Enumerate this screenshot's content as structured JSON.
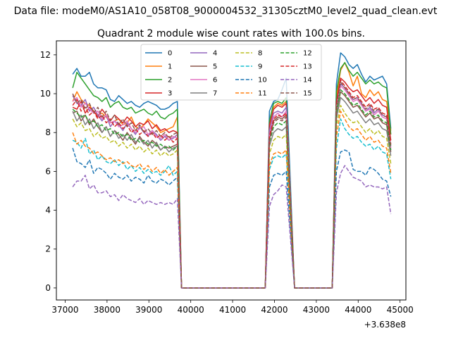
{
  "figure": {
    "suptitle": "Data file: modeM0/AS1A10_058T08_9000004532_31305cztM0_level2_quad_clean.evt",
    "offset_label": "+3.638e8"
  },
  "chart_data": {
    "type": "line",
    "title": "Quadrant 2 module wise count rates with 100.0s bins.",
    "xlabel": "",
    "ylabel": "",
    "x_offset": 363800000,
    "xlim": [
      36790,
      45140
    ],
    "ylim": [
      -0.62,
      12.72
    ],
    "x_ticks": [
      37000,
      38000,
      39000,
      40000,
      41000,
      42000,
      43000,
      44000,
      45000
    ],
    "y_ticks": [
      0,
      2,
      4,
      6,
      8,
      10,
      12
    ],
    "grid": false,
    "legend": {
      "placement": "top-center",
      "columns": 4
    },
    "segments": [
      {
        "x_start": 37180,
        "x_end": 39680,
        "step": 100
      },
      {
        "x_start": 41880,
        "x_end": 42280,
        "step": 100
      },
      {
        "x_start": 43480,
        "x_end": 44780,
        "step": 100
      }
    ],
    "zero_stretches": [
      [
        39780,
        41780
      ],
      [
        42480,
        43380
      ]
    ],
    "bridges": [
      {
        "from": 39680,
        "to": 39780
      },
      {
        "from": 41780,
        "to": 41880
      },
      {
        "from": 42280,
        "to": 42480
      },
      {
        "from": 43380,
        "to": 43480
      }
    ],
    "series": [
      {
        "name": "0",
        "color": "#1f77b4",
        "dash": "solid",
        "seg": [
          [
            11.0,
            11.3,
            10.9,
            10.9,
            11.1,
            10.5,
            10.3,
            10.3,
            10.2,
            9.7,
            9.6,
            9.9,
            9.7,
            9.5,
            9.6,
            9.4,
            9.3,
            9.5,
            9.6,
            9.5,
            9.4,
            9.2,
            9.2,
            9.3,
            9.5,
            9.6
          ],
          [
            9.1,
            9.6,
            9.7,
            10.2,
            10.8
          ],
          [
            10.5,
            12.1,
            11.9,
            11.5,
            11.3,
            11.5,
            11.0,
            10.6,
            10.9,
            10.7,
            10.8,
            10.9,
            10.5,
            8.2
          ]
        ]
      },
      {
        "name": "1",
        "color": "#ff7f0e",
        "dash": "solid",
        "seg": [
          [
            9.6,
            10.1,
            9.7,
            9.5,
            9.4,
            9.1,
            8.9,
            9.0,
            8.8,
            8.5,
            8.6,
            8.7,
            8.4,
            8.5,
            8.8,
            8.3,
            8.2,
            8.4,
            8.7,
            8.5,
            8.3,
            8.0,
            8.1,
            8.2,
            8.3,
            8.8
          ],
          [
            8.2,
            9.3,
            9.5,
            9.4,
            9.6
          ],
          [
            9.8,
            11.2,
            11.6,
            11.1,
            10.4,
            10.9,
            10.0,
            9.8,
            10.2,
            9.9,
            10.1,
            9.7,
            9.6,
            8.1
          ]
        ]
      },
      {
        "name": "2",
        "color": "#2ca02c",
        "dash": "solid",
        "seg": [
          [
            10.3,
            11.1,
            10.8,
            10.5,
            10.2,
            9.9,
            9.8,
            9.6,
            9.8,
            9.3,
            9.5,
            9.6,
            9.3,
            9.2,
            9.3,
            9.0,
            9.1,
            9.2,
            9.0,
            8.9,
            9.1,
            8.8,
            8.7,
            8.9,
            9.0,
            9.2
          ],
          [
            8.6,
            9.5,
            9.6,
            9.5,
            9.8
          ],
          [
            10.1,
            11.3,
            11.6,
            11.2,
            10.9,
            11.1,
            10.8,
            10.5,
            10.7,
            10.5,
            10.6,
            10.4,
            10.3,
            7.9
          ]
        ]
      },
      {
        "name": "3",
        "color": "#d62728",
        "dash": "solid",
        "seg": [
          [
            9.3,
            9.2,
            9.6,
            9.0,
            9.3,
            9.1,
            8.8,
            9.2,
            8.9,
            8.6,
            8.9,
            8.7,
            8.5,
            8.8,
            8.6,
            8.3,
            8.5,
            8.4,
            8.6,
            8.2,
            8.4,
            8.1,
            8.2,
            8.0,
            8.1,
            8.0
          ],
          [
            8.4,
            9.2,
            9.4,
            9.3,
            9.5
          ],
          [
            9.6,
            10.8,
            10.6,
            10.3,
            10.1,
            10.2,
            9.9,
            9.6,
            9.8,
            9.5,
            9.7,
            9.4,
            9.3,
            7.6
          ]
        ]
      },
      {
        "name": "4",
        "color": "#9467bd",
        "dash": "solid",
        "seg": [
          [
            9.9,
            9.5,
            9.4,
            9.7,
            9.1,
            9.3,
            8.9,
            8.6,
            8.9,
            8.3,
            8.6,
            8.4,
            8.1,
            8.5,
            8.2,
            7.9,
            8.3,
            8.0,
            7.8,
            8.1,
            7.9,
            7.6,
            7.8,
            7.6,
            7.7,
            7.9
          ],
          [
            8.1,
            9.0,
            9.1,
            9.0,
            9.3
          ],
          [
            9.3,
            10.5,
            10.3,
            10.0,
            9.7,
            9.8,
            9.5,
            9.1,
            9.3,
            9.0,
            9.2,
            8.9,
            8.8,
            7.3
          ]
        ]
      },
      {
        "name": "5",
        "color": "#8c564b",
        "dash": "solid",
        "seg": [
          [
            9.0,
            9.1,
            8.6,
            8.9,
            8.4,
            8.7,
            8.3,
            8.0,
            8.3,
            7.8,
            8.1,
            7.9,
            7.6,
            8.0,
            7.7,
            7.4,
            7.8,
            7.5,
            7.3,
            7.6,
            7.4,
            7.1,
            7.3,
            7.2,
            7.3,
            7.4
          ],
          [
            7.7,
            8.6,
            8.8,
            8.7,
            8.9
          ],
          [
            9.0,
            10.1,
            9.9,
            9.6,
            9.3,
            9.4,
            9.1,
            8.8,
            9.0,
            8.7,
            8.8,
            8.5,
            8.4,
            7.0
          ]
        ]
      },
      {
        "name": "6",
        "color": "#e377c2",
        "dash": "solid",
        "seg": [
          [
            9.6,
            9.8,
            9.3,
            9.5,
            9.2,
            9.0,
            9.1,
            8.7,
            8.9,
            8.5,
            8.6,
            8.3,
            8.4,
            8.6,
            8.2,
            8.0,
            8.2,
            8.3,
            7.9,
            8.1,
            7.8,
            7.7,
            7.9,
            7.6,
            7.8,
            7.7
          ],
          [
            7.9,
            8.8,
            9.0,
            8.8,
            9.1
          ],
          [
            9.2,
            10.4,
            10.2,
            9.9,
            9.6,
            9.7,
            9.4,
            9.1,
            9.2,
            8.9,
            9.1,
            8.8,
            8.7,
            7.2
          ]
        ]
      },
      {
        "name": "7",
        "color": "#7f7f7f",
        "dash": "solid",
        "seg": [
          [
            9.1,
            8.6,
            8.9,
            8.4,
            8.7,
            8.2,
            8.5,
            8.0,
            8.3,
            7.8,
            8.1,
            7.7,
            7.9,
            7.6,
            7.9,
            7.5,
            7.7,
            7.4,
            7.6,
            7.2,
            7.5,
            7.1,
            7.3,
            7.0,
            7.2,
            7.3
          ],
          [
            7.3,
            8.0,
            8.2,
            8.1,
            8.3
          ],
          [
            8.7,
            9.8,
            9.6,
            9.3,
            9.0,
            9.1,
            8.8,
            8.5,
            8.7,
            8.4,
            8.5,
            8.2,
            8.1,
            6.8
          ]
        ]
      },
      {
        "name": "8",
        "color": "#bcbd22",
        "dash": "dashed",
        "seg": [
          [
            8.7,
            8.3,
            8.5,
            8.1,
            8.2,
            7.8,
            8.0,
            7.7,
            7.8,
            7.5,
            7.6,
            7.3,
            7.5,
            7.2,
            7.4,
            7.1,
            7.3,
            7.0,
            7.2,
            6.9,
            7.1,
            6.8,
            7.0,
            6.8,
            6.9,
            7.1
          ],
          [
            6.9,
            7.6,
            7.8,
            7.7,
            7.9
          ],
          [
            8.3,
            9.4,
            9.0,
            8.7,
            8.5,
            8.6,
            8.3,
            8.0,
            8.2,
            7.9,
            8.1,
            7.8,
            7.7,
            6.4
          ]
        ]
      },
      {
        "name": "9",
        "color": "#17becf",
        "dash": "dashed",
        "seg": [
          [
            7.6,
            7.5,
            7.2,
            7.7,
            6.9,
            7.1,
            6.6,
            6.8,
            6.5,
            6.4,
            6.6,
            6.3,
            6.5,
            6.1,
            6.3,
            6.0,
            6.2,
            5.9,
            6.1,
            5.9,
            6.0,
            5.8,
            6.0,
            6.3,
            5.8,
            6.0
          ],
          [
            6.1,
            6.7,
            6.8,
            6.7,
            6.9
          ],
          [
            7.2,
            8.7,
            8.2,
            7.9,
            7.7,
            7.8,
            7.5,
            7.3,
            7.4,
            7.1,
            7.3,
            7.0,
            6.9,
            5.6
          ]
        ]
      },
      {
        "name": "10",
        "color": "#1f77b4",
        "dash": "dashed",
        "seg": [
          [
            7.2,
            6.5,
            6.4,
            6.2,
            6.6,
            5.9,
            6.2,
            6.1,
            5.9,
            5.6,
            5.9,
            5.7,
            5.6,
            5.8,
            5.5,
            5.7,
            5.6,
            5.4,
            5.8,
            5.5,
            5.4,
            5.6,
            5.5,
            5.3,
            5.5,
            5.7
          ],
          [
            5.2,
            5.8,
            5.9,
            5.8,
            6.0
          ],
          [
            6.0,
            7.0,
            7.1,
            7.0,
            6.1,
            6.0,
            6.0,
            5.8,
            6.2,
            6.1,
            5.9,
            5.6,
            5.5,
            4.7
          ]
        ]
      },
      {
        "name": "11",
        "color": "#ff7f0e",
        "dash": "dashed",
        "seg": [
          [
            8.0,
            7.4,
            7.6,
            7.3,
            7.2,
            6.9,
            7.0,
            6.8,
            6.6,
            6.7,
            6.5,
            6.6,
            6.4,
            6.5,
            6.3,
            6.2,
            6.4,
            6.1,
            6.3,
            6.0,
            6.2,
            5.9,
            6.1,
            5.8,
            6.0,
            6.2
          ],
          [
            6.3,
            6.9,
            7.0,
            6.9,
            7.1
          ],
          [
            7.8,
            9.1,
            8.7,
            8.3,
            8.1,
            8.2,
            7.9,
            7.6,
            7.8,
            7.5,
            7.6,
            7.3,
            7.2,
            5.9
          ]
        ]
      },
      {
        "name": "12",
        "color": "#2ca02c",
        "dash": "dashed",
        "seg": [
          [
            9.2,
            9.0,
            8.8,
            8.9,
            8.5,
            8.6,
            8.3,
            8.4,
            8.1,
            8.2,
            7.9,
            8.0,
            7.8,
            7.9,
            7.6,
            7.7,
            7.5,
            7.6,
            7.4,
            7.5,
            7.3,
            7.4,
            7.2,
            7.3,
            7.1,
            7.3
          ],
          [
            7.5,
            8.3,
            8.5,
            8.4,
            8.6
          ],
          [
            9.0,
            10.2,
            10.0,
            9.7,
            9.4,
            9.5,
            9.2,
            8.9,
            9.1,
            8.8,
            8.9,
            8.6,
            8.5,
            7.1
          ]
        ]
      },
      {
        "name": "13",
        "color": "#d62728",
        "dash": "dashed",
        "seg": [
          [
            9.4,
            9.7,
            9.1,
            9.3,
            8.9,
            9.1,
            8.7,
            8.9,
            8.5,
            8.7,
            8.3,
            8.5,
            8.2,
            8.4,
            8.0,
            8.2,
            7.9,
            8.1,
            7.8,
            8.0,
            7.7,
            7.9,
            7.6,
            7.8,
            7.5,
            7.7
          ],
          [
            7.8,
            8.7,
            8.9,
            8.8,
            9.0
          ],
          [
            9.4,
            10.7,
            10.4,
            10.1,
            9.8,
            9.9,
            9.6,
            9.3,
            9.5,
            9.2,
            9.3,
            9.0,
            8.9,
            7.4
          ]
        ]
      },
      {
        "name": "14",
        "color": "#9467bd",
        "dash": "dashed",
        "seg": [
          [
            5.2,
            5.5,
            5.5,
            5.8,
            5.1,
            5.3,
            4.9,
            4.9,
            5.0,
            4.7,
            4.8,
            4.5,
            4.8,
            4.6,
            4.5,
            4.4,
            4.6,
            4.3,
            4.5,
            4.4,
            4.3,
            4.4,
            4.3,
            4.4,
            4.3,
            4.6
          ],
          [
            4.2,
            4.8,
            5.0,
            5.3,
            5.2
          ],
          [
            4.9,
            5.9,
            6.3,
            6.0,
            5.7,
            5.6,
            5.5,
            5.2,
            5.3,
            5.2,
            5.2,
            5.1,
            5.2,
            3.8
          ]
        ]
      },
      {
        "name": "15",
        "color": "#8c564b",
        "dash": "dashed",
        "seg": [
          [
            10.0,
            9.5,
            9.7,
            9.2,
            9.5,
            9.0,
            9.3,
            8.8,
            9.1,
            8.6,
            8.9,
            8.4,
            8.7,
            8.3,
            8.5,
            8.1,
            8.4,
            8.0,
            8.2,
            7.9,
            8.1,
            7.8,
            8.0,
            7.7,
            7.9,
            8.0
          ],
          [
            7.6,
            8.5,
            8.7,
            8.6,
            8.8
          ],
          [
            9.3,
            10.6,
            10.3,
            10.0,
            9.7,
            9.8,
            9.5,
            9.2,
            9.4,
            9.1,
            9.2,
            8.9,
            8.8,
            7.3
          ]
        ]
      }
    ]
  }
}
